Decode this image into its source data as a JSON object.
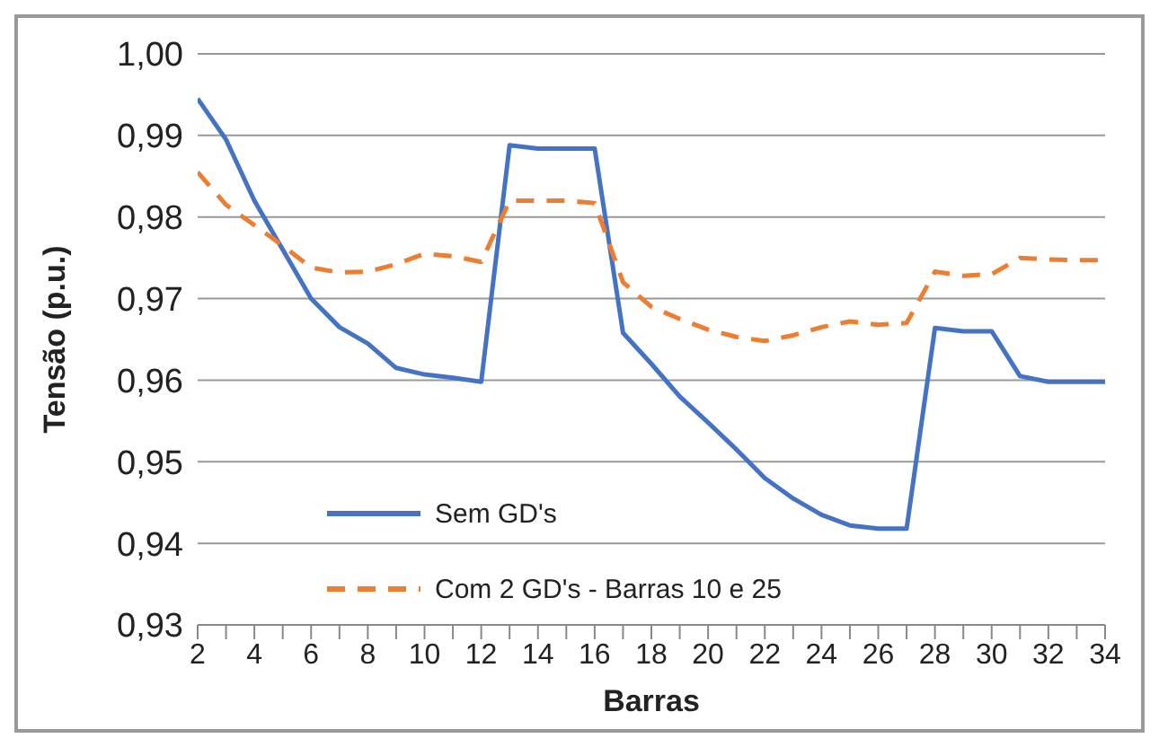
{
  "chart_data": {
    "type": "line",
    "xlabel": "Barras",
    "ylabel": "Tensão (p.u.)",
    "x": [
      2,
      3,
      4,
      5,
      6,
      7,
      8,
      9,
      10,
      11,
      12,
      13,
      14,
      15,
      16,
      17,
      18,
      19,
      20,
      21,
      22,
      23,
      24,
      25,
      26,
      27,
      28,
      29,
      30,
      31,
      32,
      33,
      34
    ],
    "series": [
      {
        "name": "Sem GD's",
        "color": "#4472c4",
        "line_style": "solid",
        "values": [
          0.9945,
          0.9895,
          0.982,
          0.976,
          0.97,
          0.9665,
          0.9645,
          0.9615,
          0.9607,
          0.9603,
          0.9598,
          0.9888,
          0.9884,
          0.9884,
          0.9884,
          0.9658,
          0.962,
          0.958,
          0.9548,
          0.9515,
          0.948,
          0.9455,
          0.9435,
          0.9422,
          0.9418,
          0.9418,
          0.9664,
          0.966,
          0.966,
          0.9605,
          0.9598,
          0.9598,
          0.9598
        ]
      },
      {
        "name": "Com 2 GD's - Barras 10 e 25",
        "color": "#ed7d31",
        "line_style": "dashed",
        "values": [
          0.9855,
          0.9815,
          0.979,
          0.9765,
          0.9738,
          0.9732,
          0.9733,
          0.9742,
          0.9755,
          0.9752,
          0.9745,
          0.982,
          0.982,
          0.982,
          0.9817,
          0.972,
          0.969,
          0.9675,
          0.9662,
          0.9653,
          0.9648,
          0.9655,
          0.9665,
          0.9672,
          0.9668,
          0.967,
          0.9733,
          0.9728,
          0.973,
          0.975,
          0.9748,
          0.9747,
          0.9747
        ]
      }
    ],
    "xlim": [
      2,
      34
    ],
    "xticks": [
      2,
      {
        "value": 3,
        "label": null
      },
      4,
      {
        "value": 5,
        "label": null
      },
      6,
      {
        "value": 7,
        "label": null
      },
      8,
      {
        "value": 9,
        "label": null
      },
      10,
      {
        "value": 11,
        "label": null
      },
      12,
      {
        "value": 13,
        "label": null
      },
      14,
      {
        "value": 15,
        "label": null
      },
      16,
      {
        "value": 17,
        "label": null
      },
      18,
      {
        "value": 19,
        "label": null
      },
      20,
      {
        "value": 21,
        "label": null
      },
      22,
      {
        "value": 23,
        "label": null
      },
      24,
      {
        "value": 25,
        "label": null
      },
      26,
      {
        "value": 27,
        "label": null
      },
      28,
      {
        "value": 29,
        "label": null
      },
      30,
      {
        "value": 31,
        "label": null
      },
      32,
      {
        "value": 33,
        "label": null
      },
      34
    ],
    "ylim": [
      0.93,
      1.0
    ],
    "yticks": [
      {
        "value": 0.93,
        "label": "0,93"
      },
      {
        "value": 0.94,
        "label": "0,94"
      },
      {
        "value": 0.95,
        "label": "0,95"
      },
      {
        "value": 0.96,
        "label": "0,96"
      },
      {
        "value": 0.97,
        "label": "0,97"
      },
      {
        "value": 0.98,
        "label": "0,98"
      },
      {
        "value": 0.99,
        "label": "0,99"
      },
      {
        "value": 1.0,
        "label": "1,00"
      }
    ],
    "grid": "y",
    "legend": "bottom left",
    "marker": "none"
  }
}
